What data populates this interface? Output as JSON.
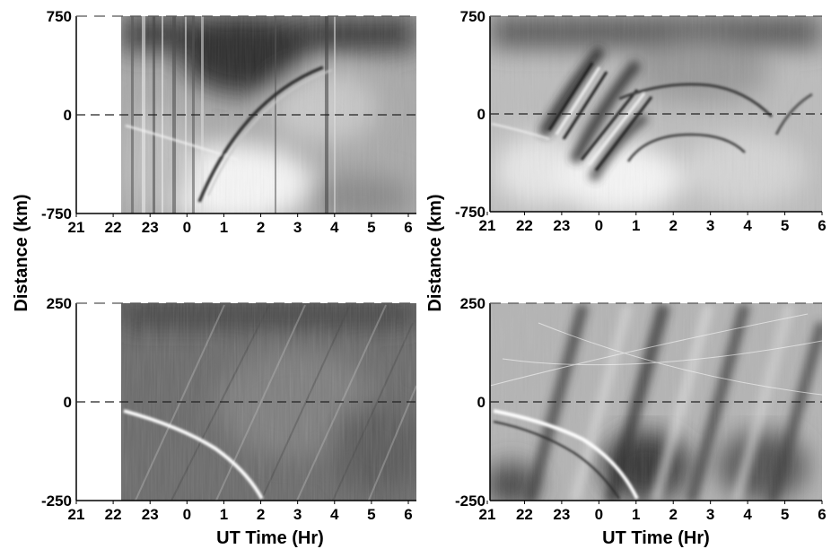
{
  "ylabel": "Distance (km)",
  "xlabel": "UT Time (Hr)",
  "chart_data": [
    {
      "type": "heatmap",
      "panel": "top-left",
      "ylim": [
        -750,
        750
      ],
      "yticks": [
        "750",
        "0",
        "-750"
      ],
      "xticks": [
        "21",
        "22",
        "23",
        "0",
        "1",
        "2",
        "3",
        "4",
        "5",
        "6"
      ],
      "data_start_tick": "22",
      "reference_line_y": 0
    },
    {
      "type": "heatmap",
      "panel": "top-right",
      "ylim": [
        -750,
        750
      ],
      "yticks": [
        "750",
        "0",
        "-750"
      ],
      "xticks": [
        "21",
        "22",
        "23",
        "0",
        "1",
        "2",
        "3",
        "4",
        "5",
        "6"
      ],
      "reference_line_y": 0
    },
    {
      "type": "heatmap",
      "panel": "bottom-left",
      "ylim": [
        -250,
        250
      ],
      "yticks": [
        "250",
        "0",
        "-250"
      ],
      "xticks": [
        "21",
        "22",
        "23",
        "0",
        "1",
        "2",
        "3",
        "4",
        "5",
        "6"
      ],
      "data_start_tick": "22",
      "reference_line_y": 0
    },
    {
      "type": "heatmap",
      "panel": "bottom-right",
      "ylim": [
        -250,
        250
      ],
      "yticks": [
        "250",
        "0",
        "-250"
      ],
      "xticks": [
        "21",
        "22",
        "23",
        "0",
        "1",
        "2",
        "3",
        "4",
        "5",
        "6"
      ],
      "reference_line_y": 0
    }
  ]
}
